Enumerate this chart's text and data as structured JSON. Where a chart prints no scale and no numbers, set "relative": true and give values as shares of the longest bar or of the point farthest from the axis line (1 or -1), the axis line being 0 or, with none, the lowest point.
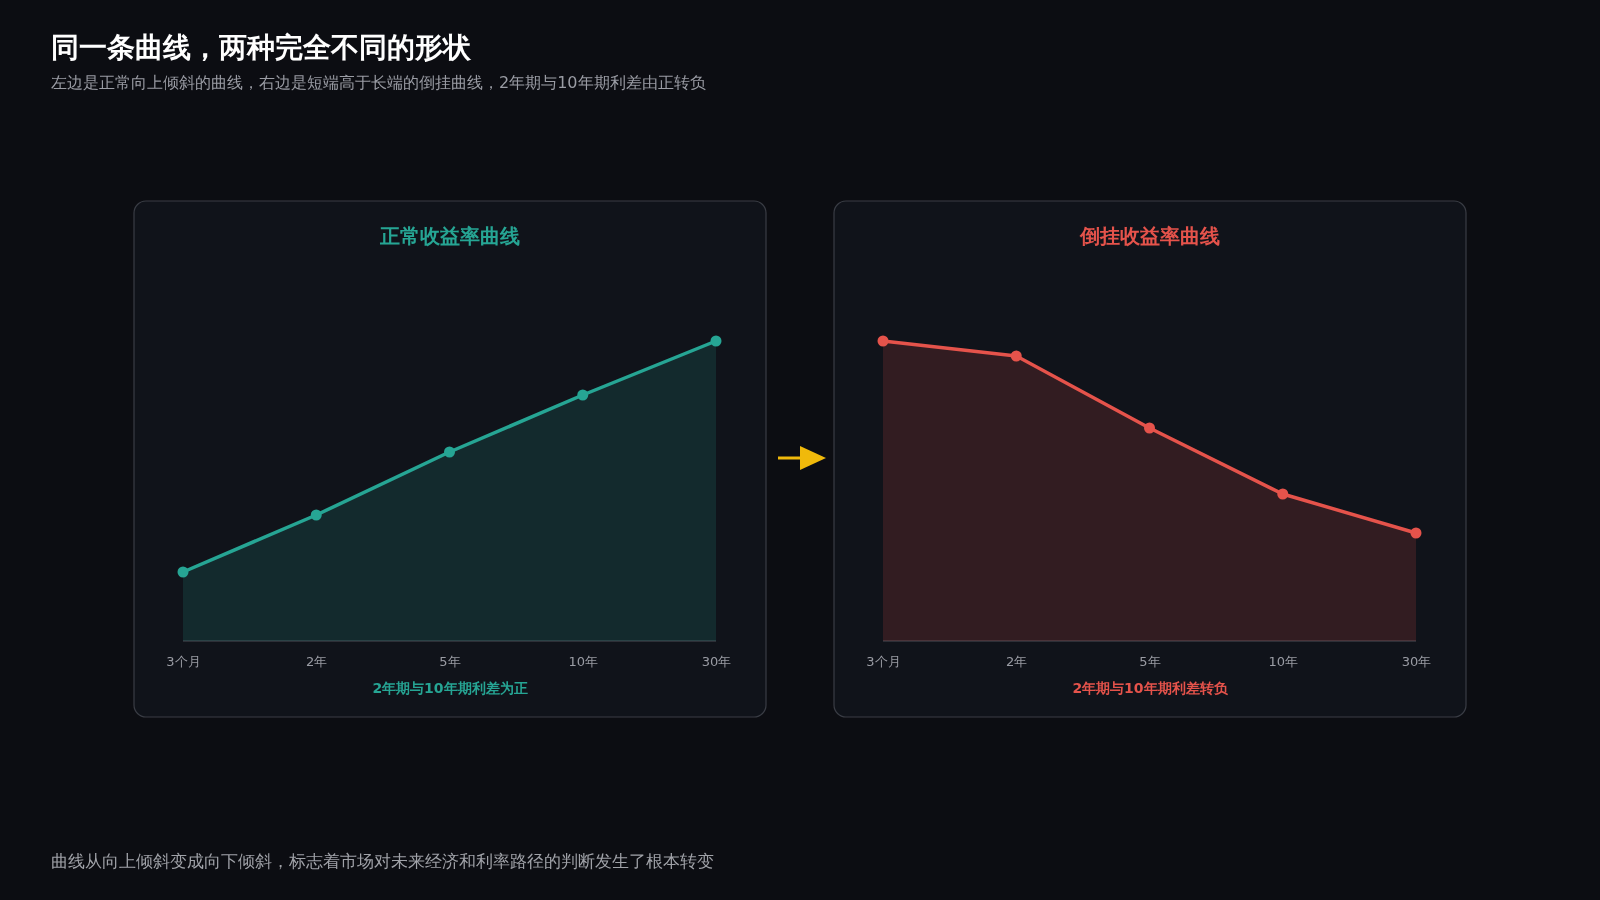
{
  "chart_data": [
    {
      "type": "area",
      "title": "正常收益率曲线",
      "xlabel": "2年期与10年期利差为正",
      "categories": [
        "3个月",
        "2年",
        "5年",
        "10年",
        "30年"
      ],
      "relative": true,
      "tick_labels": "x",
      "marker": "circle",
      "series": [
        {
          "color": "#26a594",
          "values": [
            0.23,
            0.42,
            0.63,
            0.82,
            1
          ]
        }
      ],
      "annotations": [
        "同一条曲线，两种完全不同的形状",
        "左边是正常向上倾斜的曲线，右边是短端高于长端的倒挂曲线，2年期与10年期利差由正转负"
      ]
    },
    {
      "type": "area",
      "title": "倒挂收益率曲线",
      "xlabel": "2年期与10年期利差转负",
      "categories": [
        "3个月",
        "2年",
        "5年",
        "10年",
        "30年"
      ],
      "relative": true,
      "tick_labels": "x",
      "marker": "circle",
      "series": [
        {
          "color": "#e5534b",
          "values": [
            1,
            0.95,
            0.71,
            0.49,
            0.36
          ]
        }
      ],
      "annotations": [
        "曲线从向上倾斜变成向下倾斜，标志着市场对未来经济和利率路径的判断发生了根本转变"
      ]
    }
  ]
}
